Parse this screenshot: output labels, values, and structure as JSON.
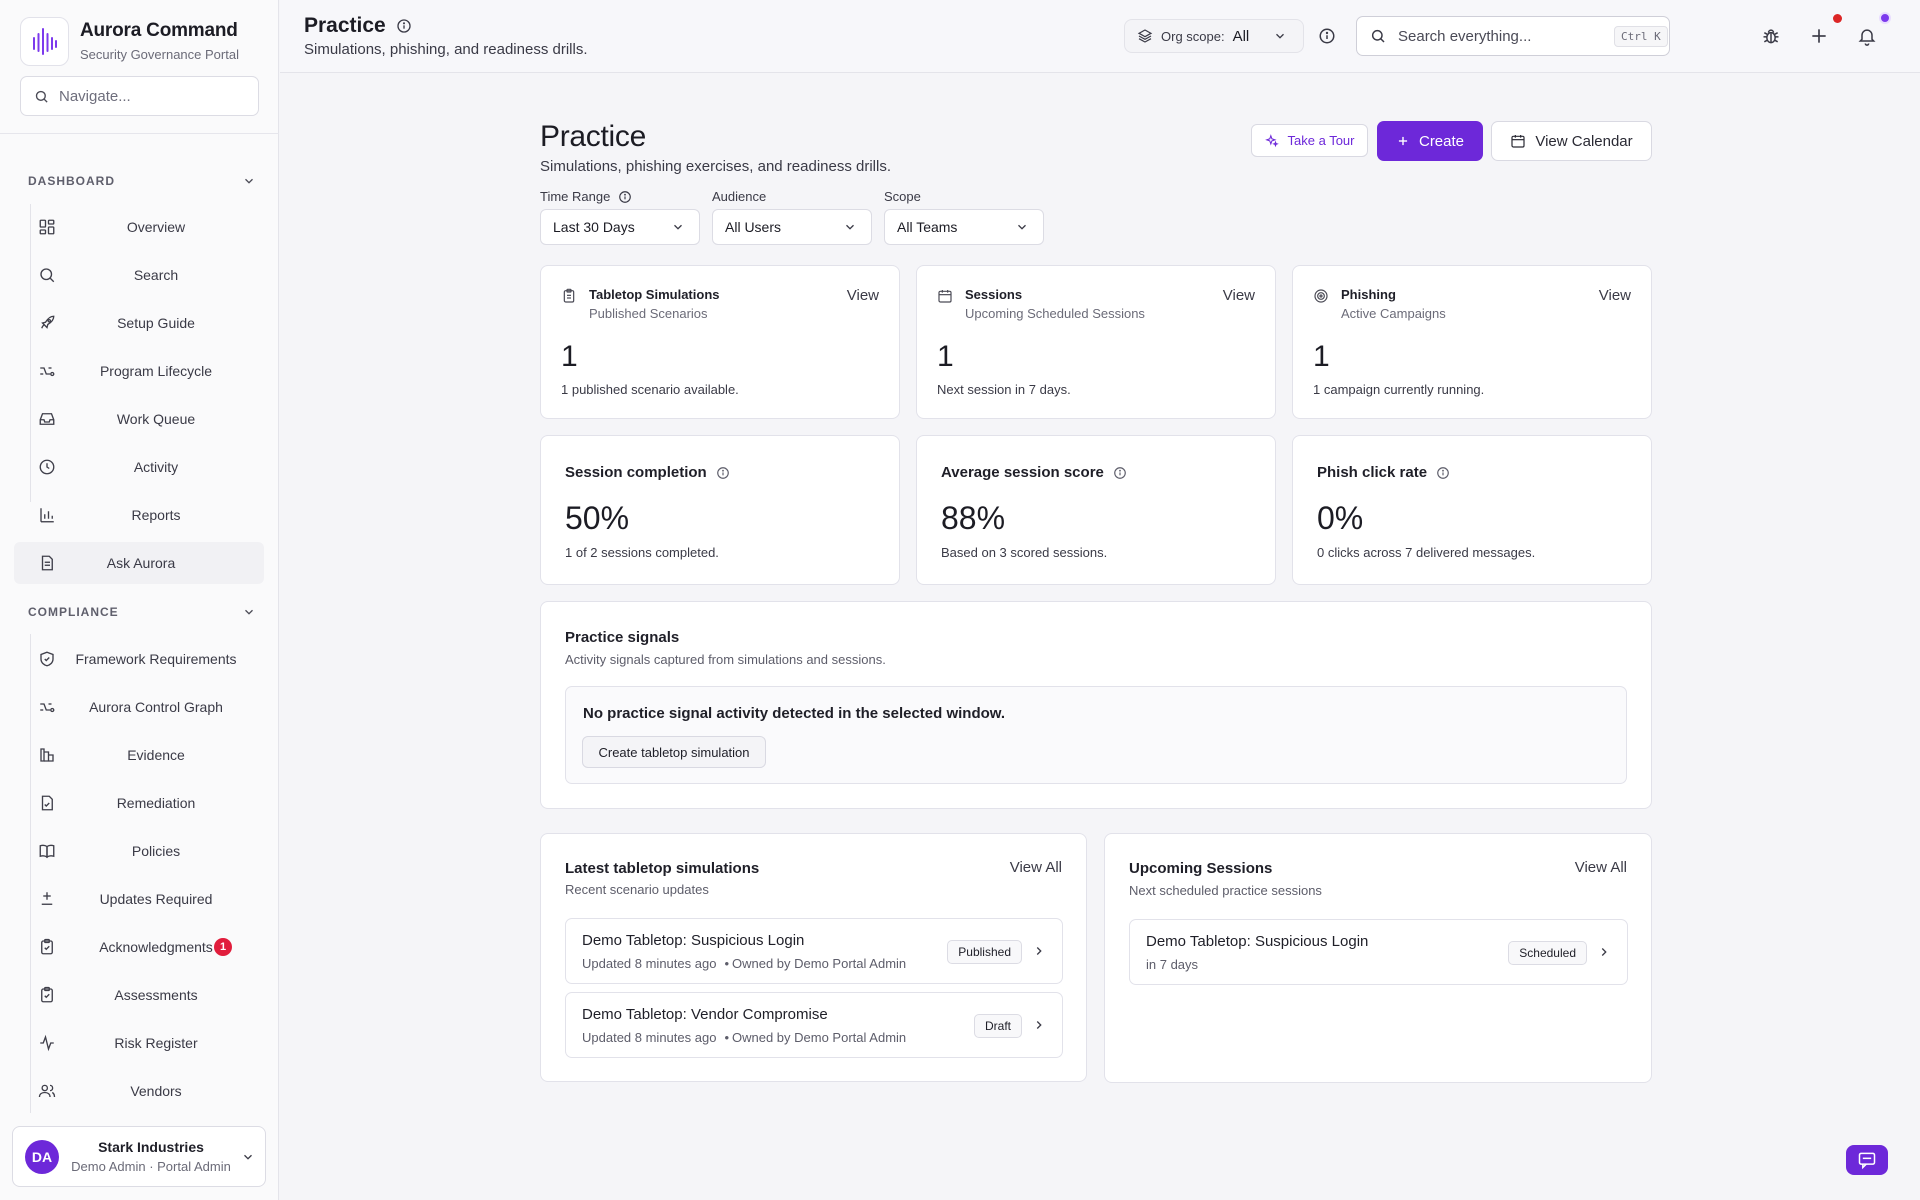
{
  "brand": {
    "name": "Aurora Command",
    "subtitle": "Security Governance Portal"
  },
  "sidebar": {
    "search_placeholder": "Navigate...",
    "sections": [
      {
        "label": "DASHBOARD"
      },
      {
        "label": "COMPLIANCE"
      }
    ],
    "dashboard_items": [
      {
        "label": "Overview",
        "icon": "grid-icon"
      },
      {
        "label": "Search",
        "icon": "search-icon"
      },
      {
        "label": "Setup Guide",
        "icon": "rocket-icon"
      },
      {
        "label": "Program Lifecycle",
        "icon": "lifecycle-icon"
      },
      {
        "label": "Work Queue",
        "icon": "inbox-icon"
      },
      {
        "label": "Activity",
        "icon": "clock-icon"
      },
      {
        "label": "Reports",
        "icon": "bar-chart-icon"
      },
      {
        "label": "Ask Aurora",
        "icon": "document-icon"
      }
    ],
    "compliance_items": [
      {
        "label": "Framework Requirements",
        "icon": "shield-icon"
      },
      {
        "label": "Aurora Control Graph",
        "icon": "graph-icon"
      },
      {
        "label": "Evidence",
        "icon": "evidence-icon"
      },
      {
        "label": "Remediation",
        "icon": "file-check-icon"
      },
      {
        "label": "Policies",
        "icon": "book-icon"
      },
      {
        "label": "Updates Required",
        "icon": "plus-minus-icon"
      },
      {
        "label": "Acknowledgments",
        "icon": "clipboard-check-icon",
        "badge": "1"
      },
      {
        "label": "Assessments",
        "icon": "clipboard-icon"
      },
      {
        "label": "Risk Register",
        "icon": "pulse-icon"
      },
      {
        "label": "Vendors",
        "icon": "users-icon"
      }
    ],
    "org": {
      "initials": "DA",
      "name": "Stark Industries",
      "user": "Demo Admin · Portal Admin"
    }
  },
  "header": {
    "title": "Practice",
    "subtitle": "Simulations, phishing, and readiness drills.",
    "scope_label": "Org scope:",
    "scope_value": "All",
    "search_placeholder": "Search everything...",
    "search_shortcut": "Ctrl K"
  },
  "page": {
    "title": "Practice",
    "subtitle": "Simulations, phishing exercises, and readiness drills.",
    "tour_label": "Take a Tour",
    "create_label": "Create",
    "calendar_label": "View Calendar"
  },
  "filters": [
    {
      "label": "Time Range",
      "value": "Last 30 Days"
    },
    {
      "label": "Audience",
      "value": "All Users"
    },
    {
      "label": "Scope",
      "value": "All Teams"
    }
  ],
  "kpis": [
    {
      "title": "Tabletop Simulations",
      "subtitle": "Published Scenarios",
      "view": "View",
      "value": "1",
      "description": "1 published scenario available.",
      "icon": "clipboard-icon"
    },
    {
      "title": "Sessions",
      "subtitle": "Upcoming Scheduled Sessions",
      "view": "View",
      "value": "1",
      "description": "Next session in 7 days.",
      "icon": "calendar-icon"
    },
    {
      "title": "Phishing",
      "subtitle": "Active Campaigns",
      "view": "View",
      "value": "1",
      "description": "1 campaign currently running.",
      "icon": "target-icon"
    }
  ],
  "metrics": [
    {
      "title": "Session completion",
      "value": "50%",
      "description": "1 of 2 sessions completed."
    },
    {
      "title": "Average session score",
      "value": "88%",
      "description": "Based on 3 scored sessions."
    },
    {
      "title": "Phish click rate",
      "value": "0%",
      "description": "0 clicks across 7 delivered messages."
    }
  ],
  "signals": {
    "title": "Practice signals",
    "subtitle": "Activity signals captured from simulations and sessions.",
    "empty_text": "No practice signal activity detected in the selected window.",
    "empty_button": "Create tabletop simulation"
  },
  "latest": {
    "title": "Latest tabletop simulations",
    "subtitle": "Recent scenario updates",
    "view_all": "View All",
    "rows": [
      {
        "title": "Demo Tabletop: Suspicious Login",
        "updated": "Updated 8 minutes ago",
        "owner": "Owned by Demo Portal Admin",
        "status": "Published"
      },
      {
        "title": "Demo Tabletop: Vendor Compromise",
        "updated": "Updated 8 minutes ago",
        "owner": "Owned by Demo Portal Admin",
        "status": "Draft"
      }
    ]
  },
  "upcoming": {
    "title": "Upcoming Sessions",
    "subtitle": "Next scheduled practice sessions",
    "view_all": "View All",
    "rows": [
      {
        "title": "Demo Tabletop: Suspicious Login",
        "when": "in 7 days",
        "status": "Scheduled"
      }
    ]
  },
  "colors": {
    "accent": "#6d28d9",
    "badge": "#e11d3c",
    "notify_dot": "#dc2626"
  }
}
